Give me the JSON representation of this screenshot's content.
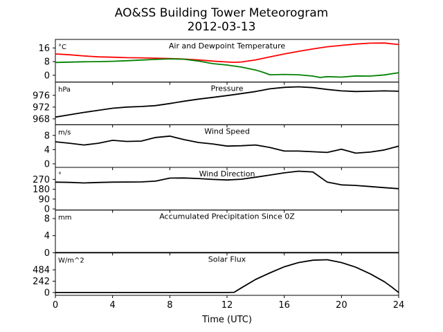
{
  "title": "AO&SS Building Tower Meteorogram",
  "subtitle": "2012-03-13",
  "chart_data": {
    "type": "line",
    "xlabel": "Time (UTC)",
    "xlim": [
      0,
      24
    ],
    "xticks": [
      0,
      4,
      8,
      12,
      16,
      20,
      24
    ],
    "panels": [
      {
        "title": "Air and Dewpoint Temperature",
        "unit": "°C",
        "ylim": [
          -4,
          21
        ],
        "yticks": [
          0,
          8,
          16
        ],
        "series": [
          {
            "color": "#ff0000",
            "x": [
              0,
              1,
              2,
              3,
              4,
              5,
              6,
              7,
              8,
              9,
              10,
              11,
              12,
              12.5,
              13,
              14,
              15,
              16,
              17,
              18,
              19,
              20,
              21,
              22,
              23,
              24
            ],
            "y": [
              12.5,
              12,
              11.3,
              10.8,
              10.6,
              10.3,
              10.2,
              10,
              9.8,
              9.5,
              9,
              8.3,
              7.8,
              7.6,
              7.8,
              9,
              10.8,
              12.5,
              14,
              15.4,
              16.7,
              17.5,
              18.3,
              18.8,
              18.9,
              18
            ]
          },
          {
            "color": "#008000",
            "x": [
              0,
              1,
              2,
              3,
              4,
              5,
              6,
              7,
              8,
              9,
              10,
              11,
              12,
              13,
              14,
              14.5,
              15,
              16,
              17,
              18,
              18.5,
              19,
              20,
              21,
              22,
              23,
              24
            ],
            "y": [
              7.5,
              7.7,
              7.9,
              8,
              8.2,
              8.5,
              8.9,
              9.3,
              9.6,
              9.4,
              8.3,
              6.8,
              6,
              4.8,
              3.1,
              1.8,
              0.3,
              0.5,
              0.3,
              -0.5,
              -1.3,
              -0.8,
              -1.1,
              -0.4,
              -0.5,
              0.2,
              1.5
            ]
          }
        ]
      },
      {
        "title": "Pressure",
        "unit": "hPa",
        "ylim": [
          966,
          980.5
        ],
        "yticks": [
          968,
          972,
          976
        ],
        "series": [
          {
            "color": "#000000",
            "x": [
              0,
              1,
              2,
              3,
              4,
              5,
              6,
              7,
              8,
              9,
              10,
              11,
              12,
              13,
              14,
              15,
              16,
              17,
              18,
              19,
              20,
              21,
              22,
              23,
              24
            ],
            "y": [
              968.6,
              969.4,
              970.2,
              970.9,
              971.6,
              972,
              972.2,
              972.5,
              973.2,
              974,
              974.7,
              975.3,
              975.9,
              976.6,
              977.3,
              978.2,
              978.7,
              978.9,
              978.6,
              978,
              977.5,
              977.3,
              977.4,
              977.5,
              977.4
            ]
          }
        ]
      },
      {
        "title": "Wind Speed",
        "unit": "m/s",
        "ylim": [
          -1,
          11
        ],
        "yticks": [
          0,
          4,
          8
        ],
        "series": [
          {
            "color": "#000000",
            "x": [
              0,
              1,
              2,
              3,
              4,
              5,
              6,
              7,
              8,
              9,
              10,
              11,
              12,
              13,
              14,
              15,
              16,
              17,
              18,
              19,
              20,
              21,
              22,
              23,
              24
            ],
            "y": [
              6.2,
              5.8,
              5.3,
              5.8,
              6.6,
              6.3,
              6.4,
              7.4,
              7.8,
              6.8,
              6,
              5.6,
              5,
              5.1,
              5.3,
              4.6,
              3.6,
              3.6,
              3.4,
              3.2,
              4.1,
              3,
              3.3,
              3.9,
              5
            ]
          }
        ]
      },
      {
        "title": "Wind Direction",
        "unit": "°",
        "ylim": [
          -10,
          380
        ],
        "yticks": [
          0,
          90,
          180,
          270
        ],
        "series": [
          {
            "color": "#000000",
            "x": [
              0,
              1,
              2,
              3,
              4,
              5,
              6,
              7,
              8,
              9,
              10,
              11,
              12,
              13,
              14,
              15,
              16,
              17,
              18,
              19,
              20,
              21,
              22,
              23,
              24
            ],
            "y": [
              245,
              243,
              238,
              242,
              245,
              246,
              247,
              254,
              282,
              283,
              278,
              270,
              265,
              272,
              290,
              310,
              330,
              345,
              338,
              245,
              220,
              215,
              205,
              195,
              185
            ]
          }
        ]
      },
      {
        "title": "Accumulated Precipitation Since 0Z",
        "unit": "mm",
        "ylim": [
          0,
          10
        ],
        "yticks": [
          0,
          4,
          8
        ],
        "series": [
          {
            "color": "#000000",
            "x": [
              0,
              24
            ],
            "y": [
              0,
              0
            ]
          }
        ]
      },
      {
        "title": "Solar Flux",
        "unit": "W/m^2",
        "ylim": [
          -60,
          850
        ],
        "yticks": [
          0,
          242,
          484
        ],
        "series": [
          {
            "color": "#000000",
            "x": [
              0,
              4,
              8,
              12,
              12.5,
              13,
              14,
              15,
              16,
              17,
              18,
              19,
              20,
              21,
              22,
              23,
              23.5,
              24
            ],
            "y": [
              0,
              0,
              0,
              0,
              5,
              100,
              280,
              420,
              550,
              640,
              690,
              700,
              640,
              540,
              400,
              230,
              120,
              0
            ]
          }
        ]
      }
    ]
  }
}
